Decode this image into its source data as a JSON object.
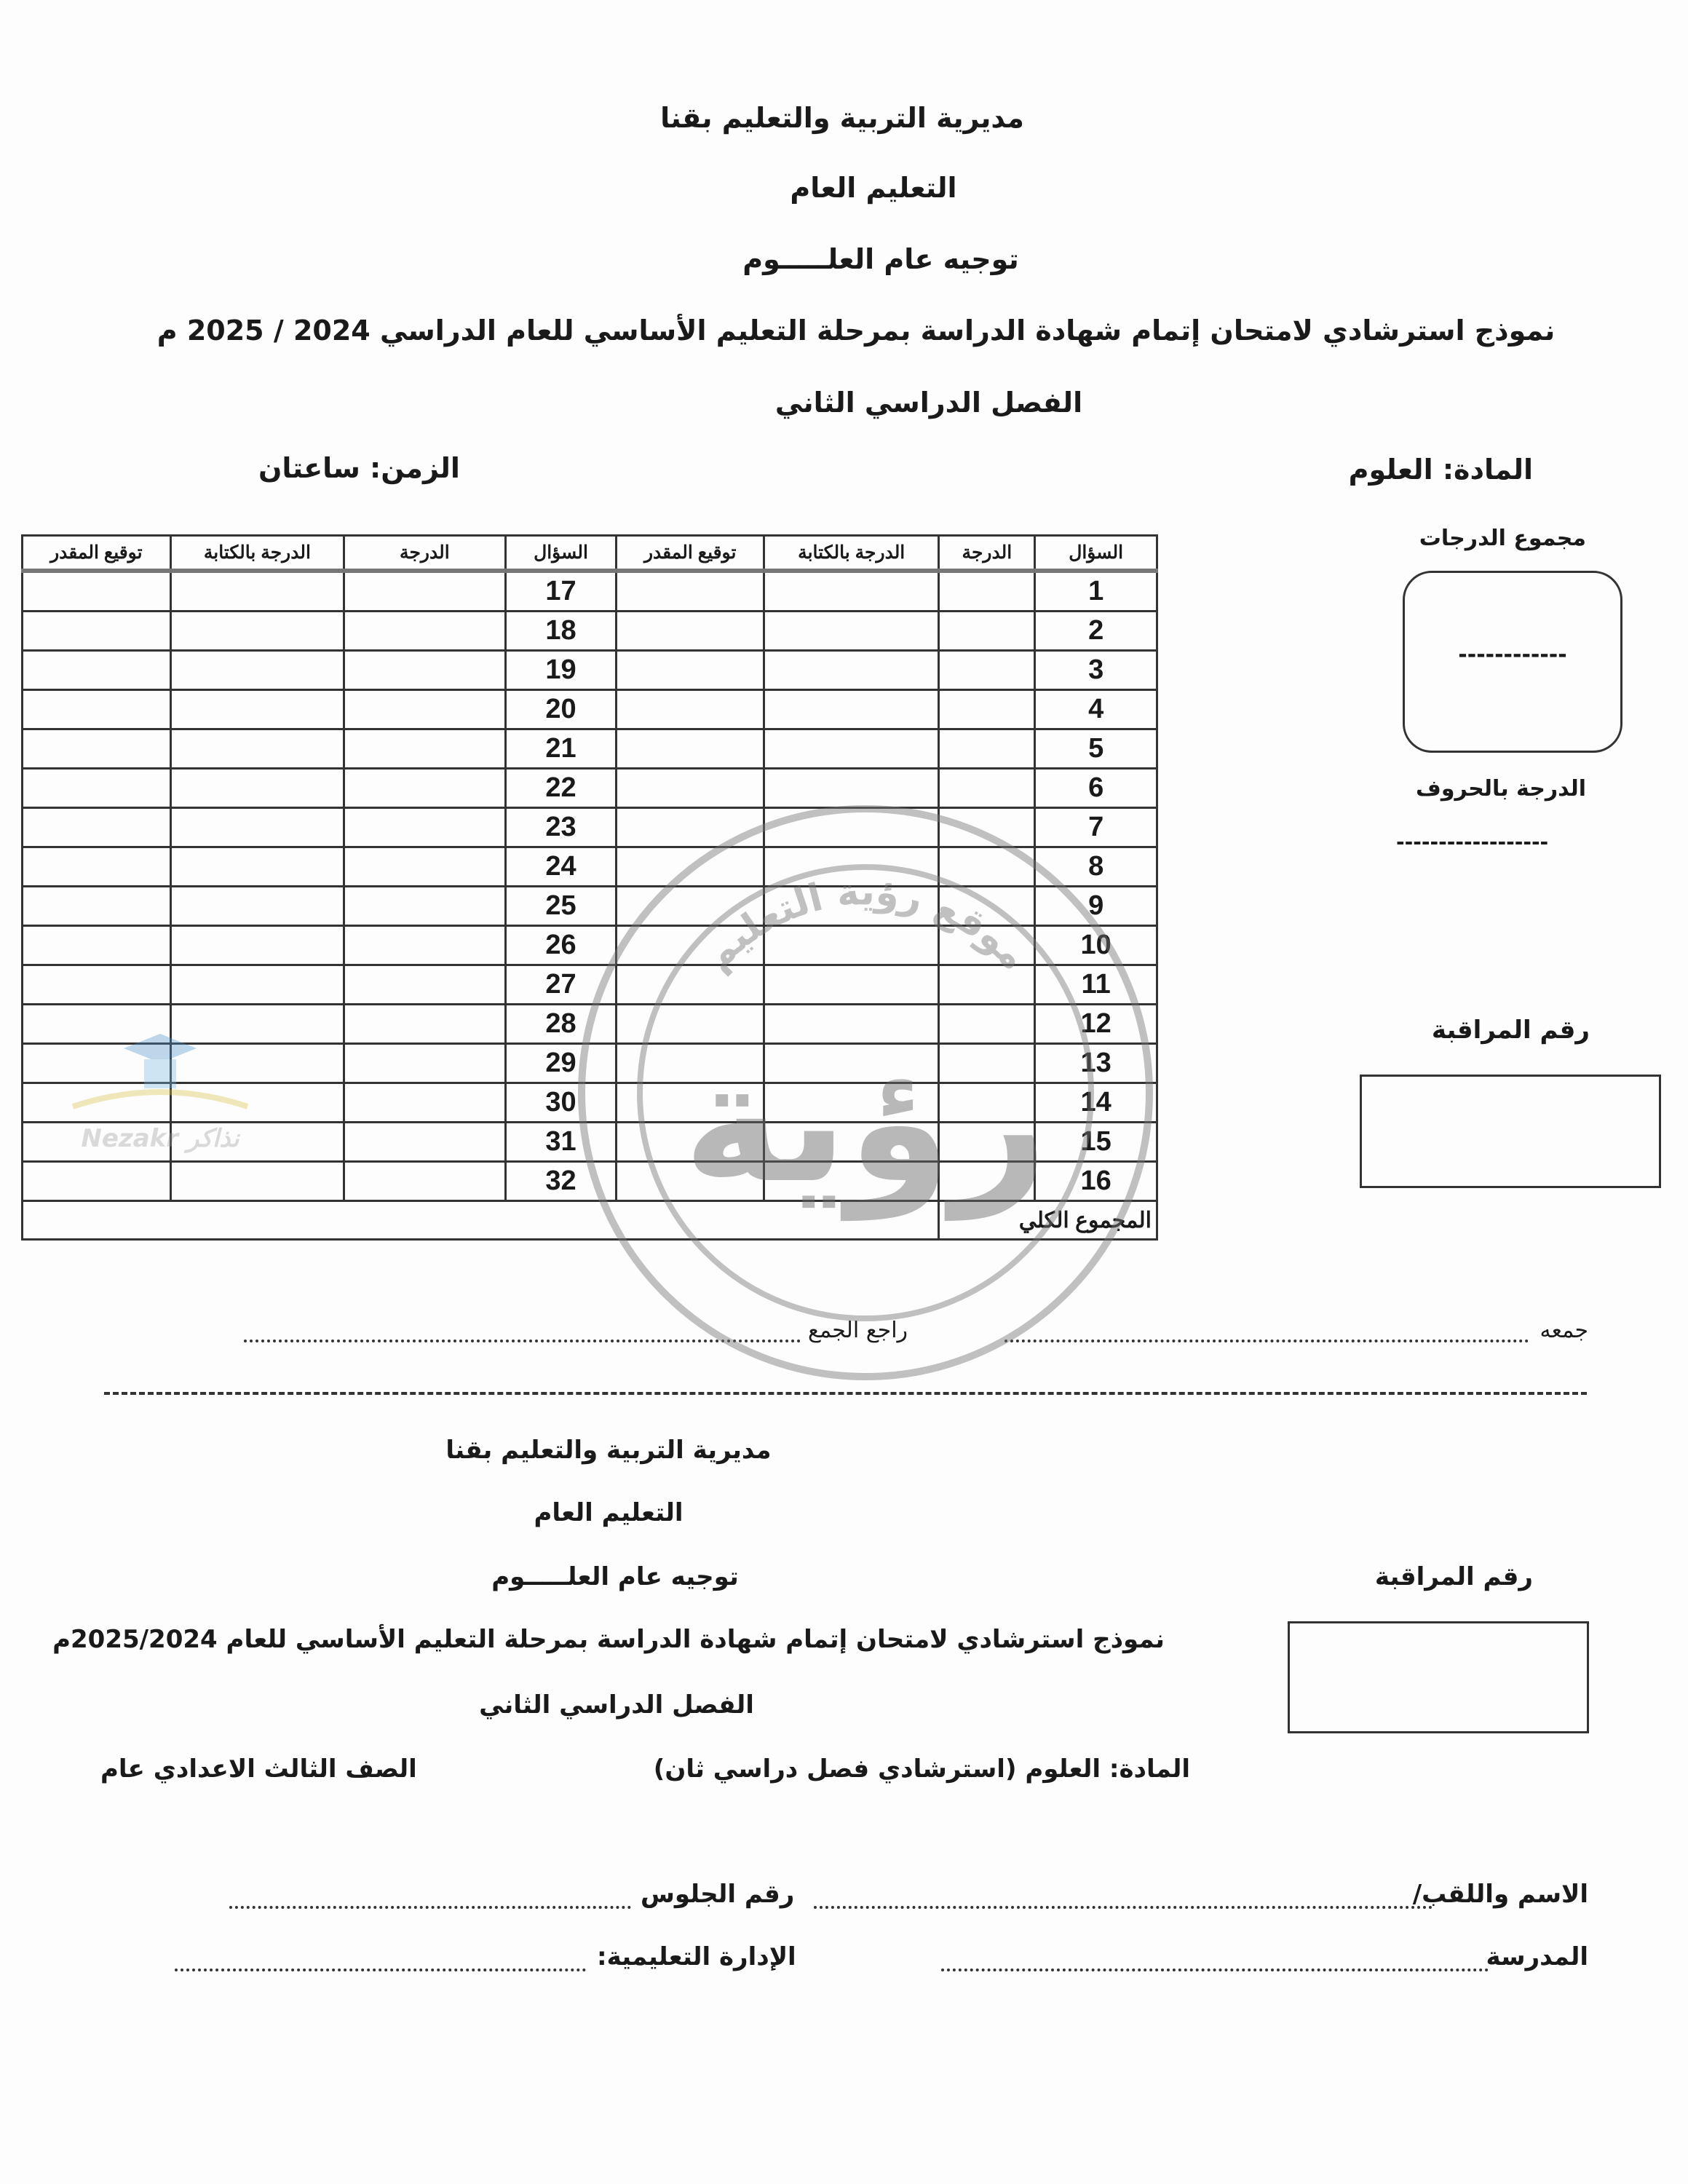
{
  "header": {
    "directorate": "مديرية التربية والتعليم بقنا",
    "general_education": "التعليم العام",
    "supervision": "توجيه عام العلـــــوم",
    "exam_title": "نموذج استرشادي لامتحان إتمام شهادة الدراسة بمرحلة التعليم الأساسي للعام الدراسي 2024 / 2025 م",
    "term": "الفصل الدراسي الثاني",
    "subject": "المادة: العلوم",
    "time": "الزمن: ساعتان"
  },
  "table": {
    "headers": [
      "السؤال",
      "الدرجة",
      "الدرجة بالكتابة",
      "توقيع المقدر",
      "السؤال",
      "الدرجة",
      "الدرجة بالكتابة",
      "توقيع المقدر"
    ],
    "rows": [
      [
        "1",
        "17"
      ],
      [
        "2",
        "18"
      ],
      [
        "3",
        "19"
      ],
      [
        "4",
        "20"
      ],
      [
        "5",
        "21"
      ],
      [
        "6",
        "22"
      ],
      [
        "7",
        "23"
      ],
      [
        "8",
        "24"
      ],
      [
        "9",
        "25"
      ],
      [
        "10",
        "26"
      ],
      [
        "11",
        "27"
      ],
      [
        "12",
        "28"
      ],
      [
        "13",
        "29"
      ],
      [
        "14",
        "30"
      ],
      [
        "15",
        "31"
      ],
      [
        "16",
        "32"
      ]
    ],
    "total_label": "المجموع الكلي"
  },
  "side": {
    "total_grades_label": "مجموع الدرجات",
    "total_grades_box_value": "------------",
    "grade_in_words_label": "الدرجة بالحروف",
    "grade_in_words_value": "------------------",
    "control_number_label": "رقم المراقبة"
  },
  "signatures": {
    "collected_by": "جمعه",
    "reviewed_by": "راجع الجمع"
  },
  "lower": {
    "directorate": "مديرية التربية والتعليم بقنا",
    "general_education": "التعليم العام",
    "supervision": "توجيه عام العلـــــوم",
    "control_number_label": "رقم المراقبة",
    "exam_title": "نموذج استرشادي لامتحان إتمام شهادة الدراسة بمرحلة التعليم الأساسي للعام 2025/2024م",
    "term": "الفصل الدراسي الثاني",
    "subject": "المادة: العلوم (استرشادي فصل دراسي ثان)",
    "grade": "الصف الثالث الاعدادي عام",
    "name_label": "الاسم واللقب/",
    "seat_label": "رقم الجلوس",
    "school_label": "المدرسة",
    "admin_label": "الإدارة التعليمية:"
  },
  "watermark": {
    "stamp_arc_text": "موقع رؤية التعليم",
    "stamp_main_text": "رؤية",
    "logo_text": "Nezakr نذاكر"
  }
}
